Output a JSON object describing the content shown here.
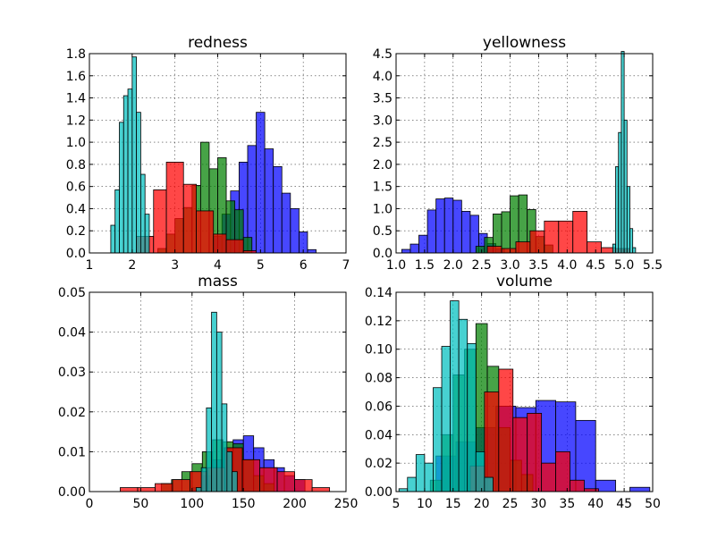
{
  "colors": {
    "blue": "#0000ff",
    "green": "#008000",
    "red": "#ff0000",
    "cyan": "#00bfbf"
  },
  "chart_data": [
    {
      "type": "bar",
      "title": "redness",
      "xlim": [
        1,
        7
      ],
      "ylim": [
        0,
        1.8
      ],
      "xticks": [
        "1",
        "2",
        "3",
        "4",
        "5",
        "6",
        "7"
      ],
      "yticks": [
        "0.0",
        "0.2",
        "0.4",
        "0.6",
        "0.8",
        "1.0",
        "1.2",
        "1.4",
        "1.6",
        "1.8"
      ],
      "grid": true,
      "series": [
        {
          "color": "blue",
          "bins": [
            [
              3.9,
              4.1,
              0.15
            ],
            [
              4.1,
              4.3,
              0.35
            ],
            [
              4.3,
              4.5,
              0.56
            ],
            [
              4.5,
              4.7,
              0.82
            ],
            [
              4.7,
              4.9,
              0.97
            ],
            [
              4.9,
              5.1,
              1.27
            ],
            [
              5.1,
              5.3,
              0.94
            ],
            [
              5.3,
              5.5,
              0.78
            ],
            [
              5.5,
              5.7,
              0.54
            ],
            [
              5.7,
              5.9,
              0.4
            ],
            [
              5.9,
              6.1,
              0.19
            ],
            [
              6.1,
              6.3,
              0.03
            ]
          ]
        },
        {
          "color": "green",
          "bins": [
            [
              2.6,
              2.8,
              0.04
            ],
            [
              2.8,
              3.0,
              0.17
            ],
            [
              3.0,
              3.2,
              0.31
            ],
            [
              3.2,
              3.4,
              0.41
            ],
            [
              3.4,
              3.6,
              0.61
            ],
            [
              3.6,
              3.8,
              1.0
            ],
            [
              3.8,
              4.0,
              0.76
            ],
            [
              4.0,
              4.2,
              0.86
            ],
            [
              4.2,
              4.4,
              0.47
            ],
            [
              4.4,
              4.6,
              0.39
            ],
            [
              4.6,
              4.8,
              0.14
            ]
          ]
        },
        {
          "color": "red",
          "bins": [
            [
              2.1,
              2.5,
              0.15
            ],
            [
              2.5,
              2.8,
              0.57
            ],
            [
              2.8,
              3.2,
              0.82
            ],
            [
              3.2,
              3.5,
              0.62
            ],
            [
              3.5,
              3.9,
              0.38
            ],
            [
              3.9,
              4.2,
              0.17
            ],
            [
              4.2,
              4.6,
              0.12
            ],
            [
              4.6,
              4.9,
              0.02
            ]
          ]
        },
        {
          "color": "cyan",
          "bins": [
            [
              1.5,
              1.6,
              0.25
            ],
            [
              1.6,
              1.7,
              0.57
            ],
            [
              1.7,
              1.8,
              1.18
            ],
            [
              1.8,
              1.9,
              1.42
            ],
            [
              1.9,
              2.0,
              1.48
            ],
            [
              2.0,
              2.1,
              1.77
            ],
            [
              2.1,
              2.2,
              1.27
            ],
            [
              2.2,
              2.3,
              0.71
            ],
            [
              2.3,
              2.4,
              0.35
            ]
          ]
        }
      ]
    },
    {
      "type": "bar",
      "title": "yellowness",
      "xlim": [
        1.0,
        5.5
      ],
      "ylim": [
        0,
        4.5
      ],
      "xticks": [
        "1.0",
        "1.5",
        "2.0",
        "2.5",
        "3.0",
        "3.5",
        "4.0",
        "4.5",
        "5.0",
        "5.5"
      ],
      "yticks": [
        "0.0",
        "0.5",
        "1.0",
        "1.5",
        "2.0",
        "2.5",
        "3.0",
        "3.5",
        "4.0",
        "4.5"
      ],
      "grid": true,
      "series": [
        {
          "color": "blue",
          "bins": [
            [
              1.1,
              1.25,
              0.08
            ],
            [
              1.25,
              1.4,
              0.2
            ],
            [
              1.4,
              1.55,
              0.4
            ],
            [
              1.55,
              1.7,
              0.97
            ],
            [
              1.7,
              1.85,
              1.22
            ],
            [
              1.85,
              2.0,
              1.24
            ],
            [
              2.0,
              2.15,
              1.19
            ],
            [
              2.15,
              2.3,
              0.94
            ],
            [
              2.3,
              2.45,
              0.85
            ],
            [
              2.45,
              2.6,
              0.44
            ],
            [
              2.6,
              2.75,
              0.21
            ],
            [
              2.75,
              2.9,
              0.09
            ]
          ]
        },
        {
          "color": "green",
          "bins": [
            [
              2.4,
              2.55,
              0.15
            ],
            [
              2.55,
              2.7,
              0.35
            ],
            [
              2.7,
              2.85,
              0.88
            ],
            [
              2.85,
              3.0,
              0.93
            ],
            [
              3.0,
              3.15,
              1.29
            ],
            [
              3.15,
              3.3,
              1.31
            ],
            [
              3.3,
              3.45,
              0.98
            ],
            [
              3.45,
              3.6,
              0.37
            ],
            [
              3.6,
              3.75,
              0.18
            ]
          ]
        },
        {
          "color": "red",
          "bins": [
            [
              2.6,
              2.85,
              0.15
            ],
            [
              2.85,
              3.1,
              0.1
            ],
            [
              3.1,
              3.35,
              0.25
            ],
            [
              3.35,
              3.6,
              0.5
            ],
            [
              3.6,
              3.85,
              0.72
            ],
            [
              3.85,
              4.1,
              0.72
            ],
            [
              4.1,
              4.35,
              0.94
            ],
            [
              4.35,
              4.6,
              0.25
            ],
            [
              4.6,
              4.85,
              0.12
            ],
            [
              4.85,
              5.1,
              0.1
            ]
          ]
        },
        {
          "color": "cyan",
          "bins": [
            [
              4.8,
              4.85,
              0.2
            ],
            [
              4.85,
              4.9,
              1.95
            ],
            [
              4.9,
              4.95,
              2.72
            ],
            [
              4.95,
              5.0,
              4.55
            ],
            [
              5.0,
              5.05,
              3.0
            ],
            [
              5.05,
              5.1,
              1.5
            ],
            [
              5.1,
              5.15,
              0.55
            ],
            [
              5.15,
              5.2,
              0.12
            ]
          ]
        }
      ]
    },
    {
      "type": "bar",
      "title": "mass",
      "xlim": [
        0,
        250
      ],
      "ylim": [
        0,
        0.05
      ],
      "xticks": [
        "0",
        "50",
        "100",
        "150",
        "200",
        "250"
      ],
      "yticks": [
        "0.00",
        "0.01",
        "0.02",
        "0.03",
        "0.04",
        "0.05"
      ],
      "grid": true,
      "series": [
        {
          "color": "blue",
          "bins": [
            [
              100,
              110,
              0.001
            ],
            [
              110,
              120,
              0.004
            ],
            [
              120,
              130,
              0.008
            ],
            [
              130,
              140,
              0.011
            ],
            [
              140,
              150,
              0.013
            ],
            [
              150,
              160,
              0.014
            ],
            [
              160,
              170,
              0.011
            ],
            [
              170,
              180,
              0.008
            ],
            [
              180,
              190,
              0.006
            ],
            [
              190,
              200,
              0.004
            ],
            [
              200,
              210,
              0.003
            ]
          ]
        },
        {
          "color": "green",
          "bins": [
            [
              70,
              80,
              0.002
            ],
            [
              80,
              90,
              0.003
            ],
            [
              90,
              100,
              0.005
            ],
            [
              100,
              110,
              0.007
            ],
            [
              110,
              120,
              0.01
            ],
            [
              120,
              130,
              0.013
            ],
            [
              130,
              140,
              0.0125
            ],
            [
              140,
              150,
              0.012
            ],
            [
              150,
              160,
              0.008
            ],
            [
              160,
              170,
              0.004
            ],
            [
              170,
              180,
              0.002
            ]
          ]
        },
        {
          "color": "red",
          "bins": [
            [
              30,
              47,
              0.001
            ],
            [
              47,
              64,
              0.001
            ],
            [
              64,
              81,
              0.002
            ],
            [
              81,
              98,
              0.003
            ],
            [
              98,
              115,
              0.005
            ],
            [
              115,
              132,
              0.006
            ],
            [
              132,
              149,
              0.011
            ],
            [
              149,
              166,
              0.008
            ],
            [
              166,
              183,
              0.006
            ],
            [
              183,
              200,
              0.005
            ],
            [
              200,
              217,
              0.003
            ],
            [
              217,
              234,
              0.001
            ]
          ]
        },
        {
          "color": "cyan",
          "bins": [
            [
              104,
              109,
              0.001
            ],
            [
              109,
              114,
              0.006
            ],
            [
              114,
              119,
              0.021
            ],
            [
              119,
              124,
              0.045
            ],
            [
              124,
              129,
              0.04
            ],
            [
              129,
              134,
              0.022
            ],
            [
              134,
              139,
              0.01
            ],
            [
              139,
              144,
              0.005
            ]
          ]
        }
      ]
    },
    {
      "type": "bar",
      "title": "volume",
      "xlim": [
        5,
        50
      ],
      "ylim": [
        0,
        0.14
      ],
      "xticks": [
        "5",
        "10",
        "15",
        "20",
        "25",
        "30",
        "35",
        "40",
        "45",
        "50"
      ],
      "yticks": [
        "0.00",
        "0.02",
        "0.04",
        "0.06",
        "0.08",
        "0.10",
        "0.12",
        "0.14"
      ],
      "grid": true,
      "series": [
        {
          "color": "blue",
          "bins": [
            [
              12,
              15.5,
              0.025
            ],
            [
              15.5,
              19,
              0.035
            ],
            [
              19,
              22.5,
              0.045
            ],
            [
              22.5,
              26,
              0.06
            ],
            [
              26,
              29.5,
              0.059
            ],
            [
              29.5,
              33,
              0.064
            ],
            [
              33,
              36.5,
              0.063
            ],
            [
              36.5,
              40,
              0.05
            ],
            [
              40,
              43.5,
              0.008
            ],
            [
              46,
              49.5,
              0.003
            ]
          ]
        },
        {
          "color": "green",
          "bins": [
            [
              11,
              13,
              0.008
            ],
            [
              13,
              15,
              0.04
            ],
            [
              15,
              17,
              0.082
            ],
            [
              17,
              19,
              0.1
            ],
            [
              19,
              21,
              0.118
            ],
            [
              21,
              23,
              0.088
            ],
            [
              23,
              25,
              0.045
            ],
            [
              25,
              27,
              0.022
            ],
            [
              27,
              29,
              0.012
            ]
          ]
        },
        {
          "color": "red",
          "bins": [
            [
              18,
              20.5,
              0.018
            ],
            [
              20.5,
              23,
              0.07
            ],
            [
              23,
              25.5,
              0.086
            ],
            [
              25.5,
              28,
              0.052
            ],
            [
              28,
              30.5,
              0.055
            ],
            [
              30.5,
              33,
              0.02
            ],
            [
              33,
              35.5,
              0.028
            ],
            [
              35.5,
              38,
              0.008
            ],
            [
              38,
              40.5,
              0.002
            ]
          ]
        },
        {
          "color": "cyan",
          "bins": [
            [
              5.5,
              7,
              0.002
            ],
            [
              7,
              8.5,
              0.01
            ],
            [
              8.5,
              10,
              0.026
            ],
            [
              10,
              11.5,
              0.02
            ],
            [
              11.5,
              13,
              0.073
            ],
            [
              13,
              14.5,
              0.102
            ],
            [
              14.5,
              16,
              0.134
            ],
            [
              16,
              17.5,
              0.121
            ],
            [
              17.5,
              19,
              0.104
            ],
            [
              19,
              20.5,
              0.028
            ],
            [
              20.5,
              22,
              0.01
            ]
          ]
        }
      ]
    }
  ]
}
